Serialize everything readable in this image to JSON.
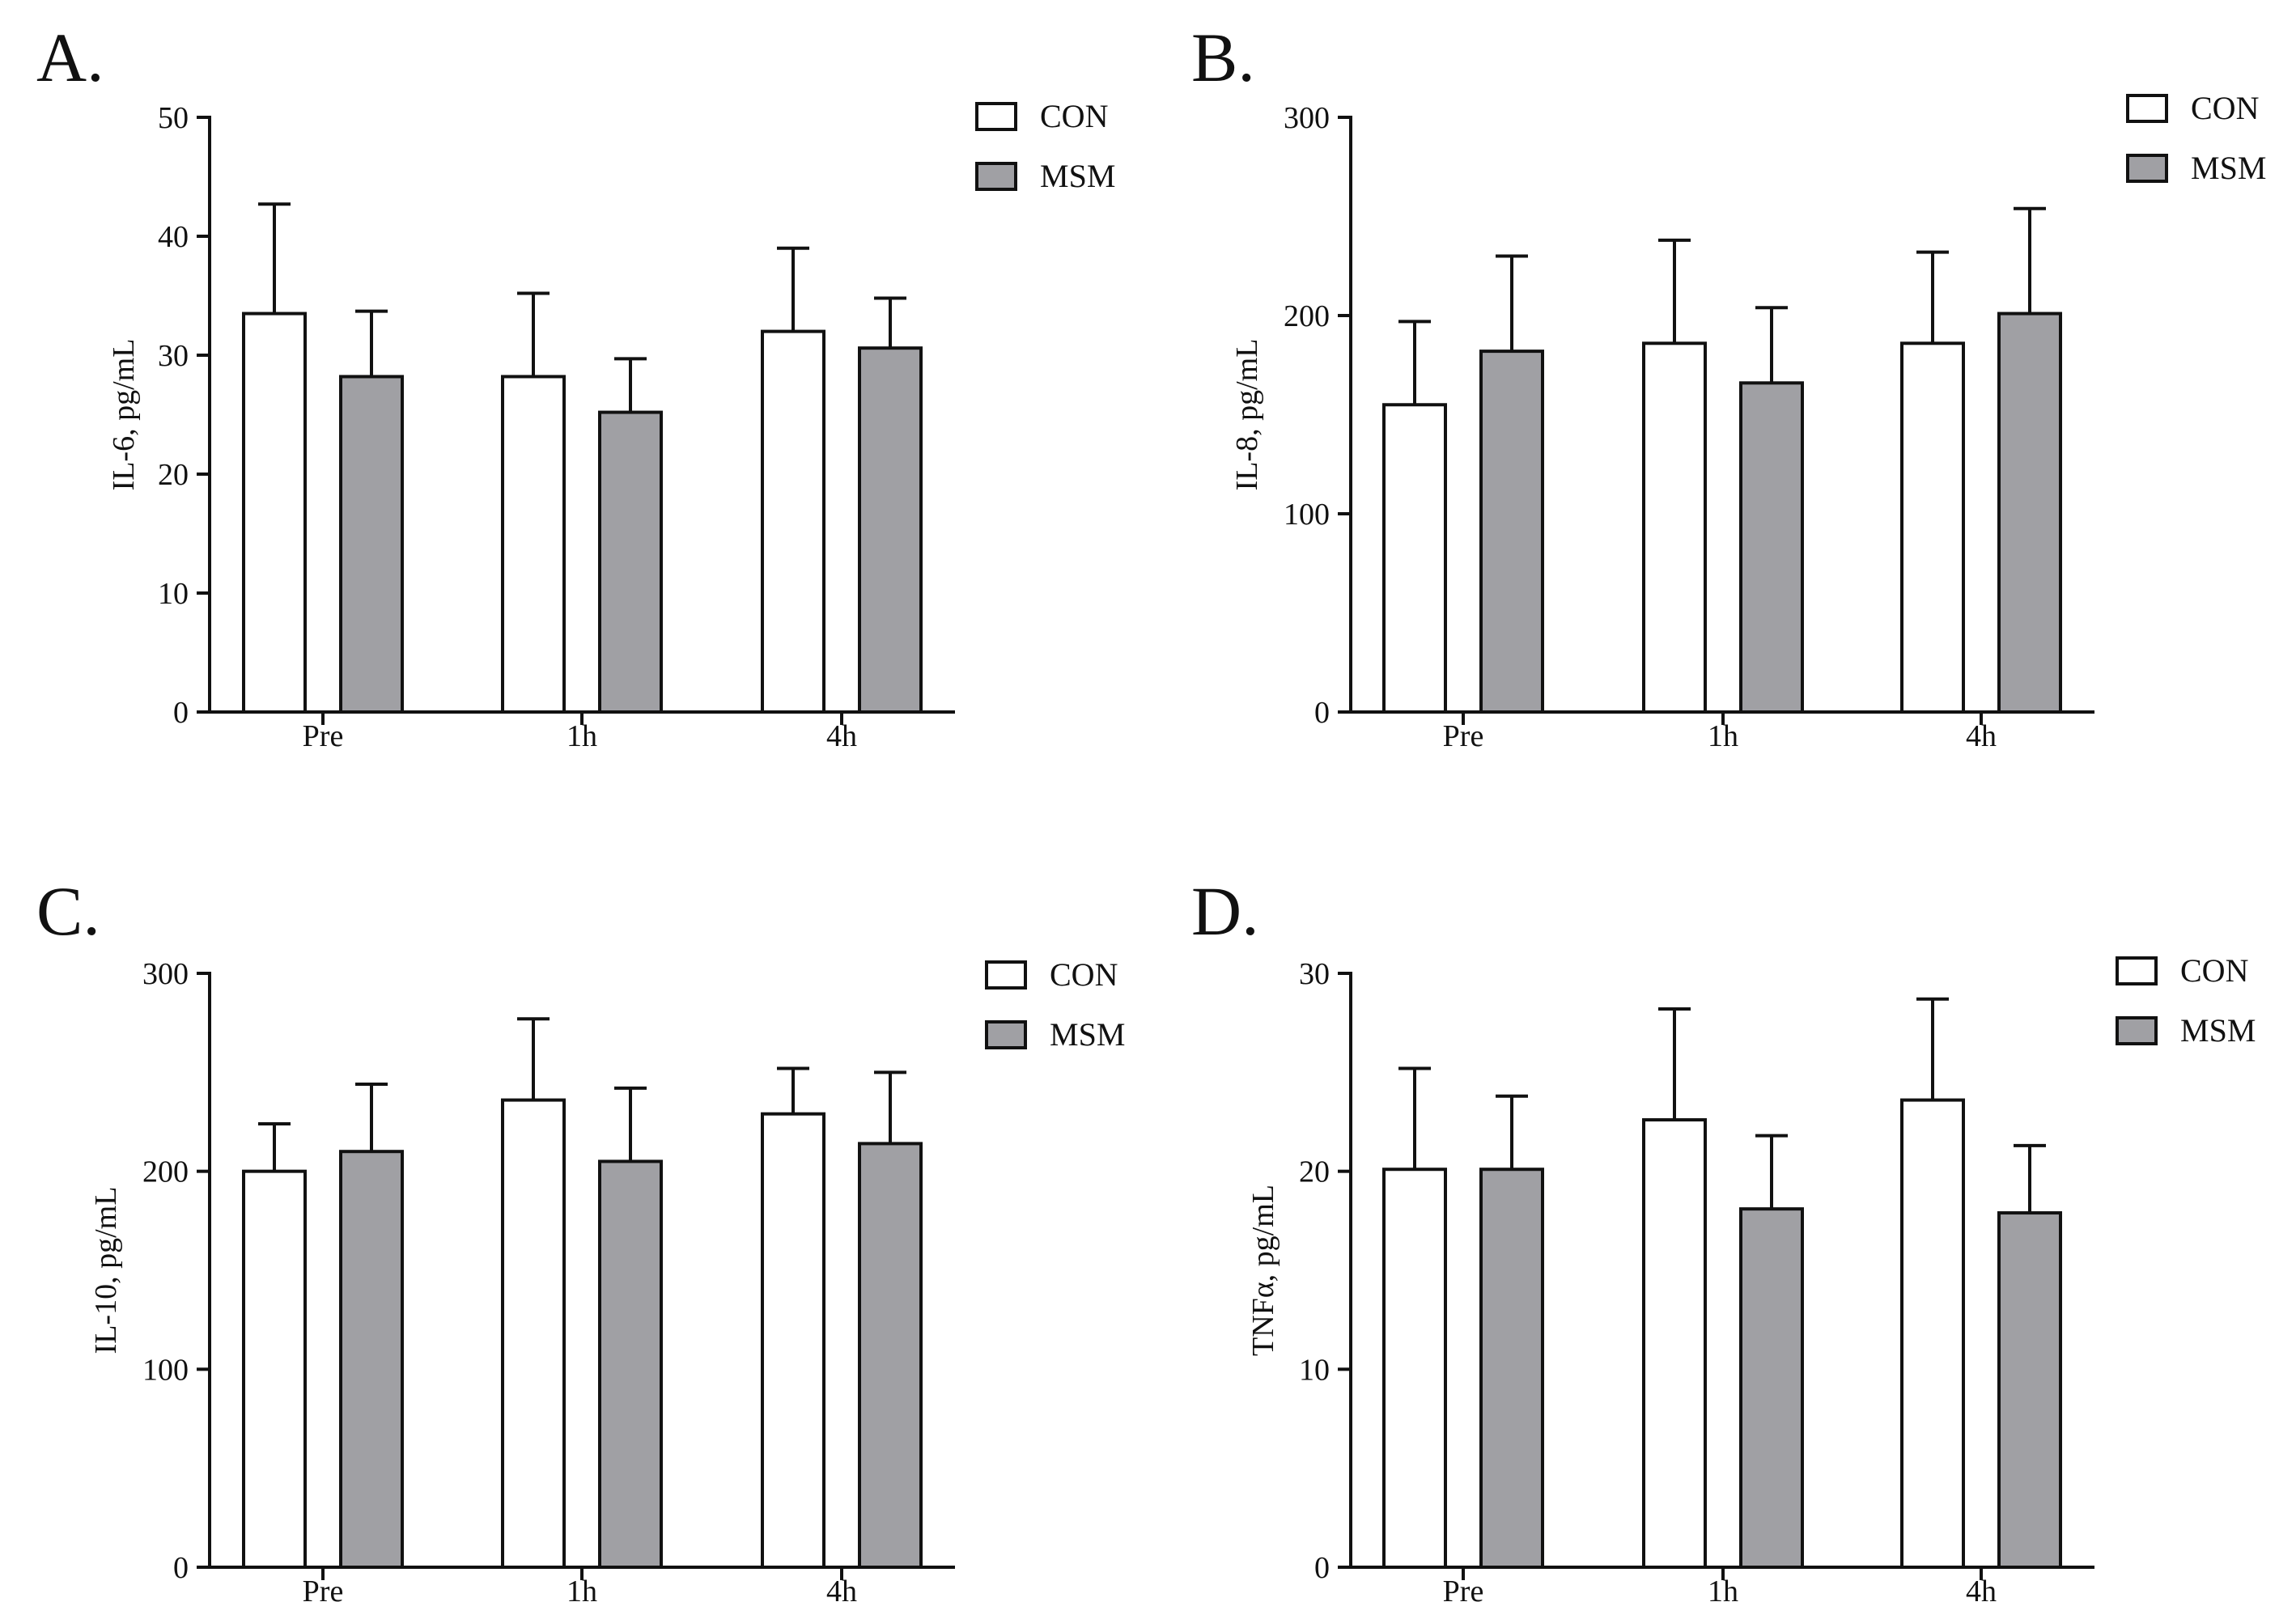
{
  "figure": {
    "colors": {
      "CON": "#ffffff",
      "MSM": "#a0a0a4",
      "stroke": "#111111"
    }
  },
  "chart_data": [
    {
      "type": "bar",
      "panel": "A.",
      "ylabel": "IL-6, pg/mL",
      "ylim": [
        0,
        50
      ],
      "yticks": [
        0,
        10,
        20,
        30,
        40,
        50
      ],
      "categories": [
        "Pre",
        "1h",
        "4h"
      ],
      "series": [
        {
          "name": "CON",
          "values": [
            33.5,
            28.2,
            32.0
          ],
          "errors": [
            9.2,
            7.0,
            7.0
          ]
        },
        {
          "name": "MSM",
          "values": [
            28.2,
            25.2,
            30.6
          ],
          "errors": [
            5.5,
            4.5,
            4.2
          ]
        }
      ]
    },
    {
      "type": "bar",
      "panel": "B.",
      "ylabel": "IL-8, pg/mL",
      "ylim": [
        0,
        300
      ],
      "yticks": [
        0,
        100,
        200,
        300
      ],
      "categories": [
        "Pre",
        "1h",
        "4h"
      ],
      "series": [
        {
          "name": "CON",
          "values": [
            155,
            186,
            186
          ],
          "errors": [
            42,
            52,
            46
          ]
        },
        {
          "name": "MSM",
          "values": [
            182,
            166,
            201
          ],
          "errors": [
            48,
            38,
            53
          ]
        }
      ]
    },
    {
      "type": "bar",
      "panel": "C.",
      "ylabel": "IL-10, pg/mL",
      "ylim": [
        0,
        300
      ],
      "yticks": [
        0,
        100,
        200,
        300
      ],
      "categories": [
        "Pre",
        "1h",
        "4h"
      ],
      "series": [
        {
          "name": "CON",
          "values": [
            200,
            236,
            229
          ],
          "errors": [
            24,
            41,
            23
          ]
        },
        {
          "name": "MSM",
          "values": [
            210,
            205,
            214
          ],
          "errors": [
            34,
            37,
            36
          ]
        }
      ]
    },
    {
      "type": "bar",
      "panel": "D.",
      "ylabel": "TNFα, pg/mL",
      "ylim": [
        0,
        30
      ],
      "yticks": [
        0,
        10,
        20,
        30
      ],
      "categories": [
        "Pre",
        "1h",
        "4h"
      ],
      "series": [
        {
          "name": "CON",
          "values": [
            20.1,
            22.6,
            23.6
          ],
          "errors": [
            5.1,
            5.6,
            5.1
          ]
        },
        {
          "name": "MSM",
          "values": [
            20.1,
            18.1,
            17.9
          ],
          "errors": [
            3.7,
            3.7,
            3.4
          ]
        }
      ]
    }
  ]
}
